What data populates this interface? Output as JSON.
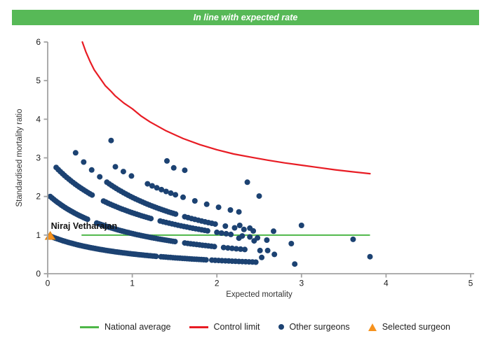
{
  "banner": {
    "text": "In line with expected rate"
  },
  "colors": {
    "banner_bg": "#57b957",
    "banner_text": "#ffffff",
    "national_average": "#4eb748",
    "control_limit": "#e81c24",
    "other_surgeons": "#1c4272",
    "selected_surgeon": "#f6921e",
    "selected_surgeon_border": "#d87f12",
    "axis": "#a2a2a2",
    "tick_text": "#1a1a1a",
    "axis_title_text": "#333333",
    "surgeon_label_text": "#111111"
  },
  "legend": {
    "items": [
      {
        "label": "National average",
        "swatch": "line",
        "color_key": "national_average"
      },
      {
        "label": "Control limit",
        "swatch": "line",
        "color_key": "control_limit"
      },
      {
        "label": "Other surgeons",
        "swatch": "dot",
        "color_key": "other_surgeons"
      },
      {
        "label": "Selected surgeon",
        "swatch": "triangle",
        "color_key": "selected_surgeon"
      }
    ]
  },
  "chart_data": {
    "type": "scatter",
    "title": "In line with expected rate",
    "xlabel": "Expected mortality",
    "ylabel": "Standardised mortality ratio",
    "xlim": [
      0,
      5
    ],
    "ylim": [
      0,
      6
    ],
    "xticks": [
      0,
      1,
      2,
      3,
      4,
      5
    ],
    "yticks": [
      0,
      1,
      2,
      3,
      4,
      5,
      6
    ],
    "grid": false,
    "legend_position": "bottom",
    "national_average": {
      "y": 1.0,
      "x_start": 0.4,
      "x_end": 3.81
    },
    "control_limit": {
      "points": [
        [
          0.41,
          6.0
        ],
        [
          0.45,
          5.75
        ],
        [
          0.5,
          5.5
        ],
        [
          0.55,
          5.28
        ],
        [
          0.6,
          5.12
        ],
        [
          0.68,
          4.87
        ],
        [
          0.75,
          4.72
        ],
        [
          0.8,
          4.6
        ],
        [
          0.9,
          4.42
        ],
        [
          1.0,
          4.27
        ],
        [
          1.1,
          4.09
        ],
        [
          1.21,
          3.93
        ],
        [
          1.4,
          3.7
        ],
        [
          1.6,
          3.5
        ],
        [
          1.8,
          3.34
        ],
        [
          2.0,
          3.21
        ],
        [
          2.2,
          3.1
        ],
        [
          2.42,
          3.01
        ],
        [
          2.6,
          2.94
        ],
        [
          2.8,
          2.87
        ],
        [
          3.0,
          2.81
        ],
        [
          3.2,
          2.75
        ],
        [
          3.4,
          2.69
        ],
        [
          3.6,
          2.64
        ],
        [
          3.81,
          2.59
        ]
      ]
    },
    "selected_surgeon": {
      "label": "Niraj Vetharajan",
      "x": 0.03,
      "y": 0.97
    },
    "other_surgeons": {
      "note": "dense bands follow y = a/(x+b); segments are [x_start, x_end, dot_spacing]",
      "bands": [
        {
          "a": 1.05,
          "b": 1.05,
          "segments": [
            [
              0.05,
              1.28,
              0.022
            ],
            [
              1.34,
              1.88,
              0.028
            ],
            [
              1.94,
              2.45,
              0.04
            ]
          ]
        },
        {
          "a": 2.1,
          "b": 1.02,
          "segments": [
            [
              0.03,
              0.48,
              0.022
            ],
            [
              0.58,
              1.5,
              0.025
            ],
            [
              1.62,
              1.98,
              0.035
            ],
            [
              2.08,
              2.35,
              0.05
            ]
          ]
        },
        {
          "a": 3.33,
          "b": 1.11,
          "segments": [
            [
              0.1,
              0.53,
              0.025
            ],
            [
              0.66,
              1.23,
              0.028
            ],
            [
              1.33,
              1.88,
              0.035
            ],
            [
              2.0,
              2.18,
              0.055
            ],
            [
              2.3,
              2.5,
              0.09
            ]
          ]
        },
        {
          "a": 3.6,
          "b": 0.82,
          "segments": [
            [
              0.33,
              0.62,
              0.095
            ],
            [
              0.7,
              1.52,
              0.028
            ],
            [
              1.62,
              1.98,
              0.04
            ],
            [
              2.1,
              2.45,
              0.11
            ]
          ]
        },
        {
          "a": 5.54,
          "b": 1.2,
          "segments": [
            [
              0.8,
              1.0,
              0.095
            ],
            [
              1.18,
              1.5,
              0.055
            ],
            [
              1.6,
              2.1,
              0.14
            ],
            [
              2.26,
              2.28,
              0.1
            ]
          ]
        }
      ],
      "points": [
        [
          0.75,
          3.45
        ],
        [
          1.41,
          2.92
        ],
        [
          1.49,
          2.74
        ],
        [
          1.62,
          2.68
        ],
        [
          2.36,
          2.37
        ],
        [
          2.5,
          2.01
        ],
        [
          2.27,
          1.25
        ],
        [
          2.39,
          1.18
        ],
        [
          2.67,
          1.1
        ],
        [
          3.0,
          1.25
        ],
        [
          2.26,
          0.92
        ],
        [
          2.44,
          0.85
        ],
        [
          2.59,
          0.87
        ],
        [
          2.88,
          0.78
        ],
        [
          2.51,
          0.6
        ],
        [
          2.6,
          0.6
        ],
        [
          2.68,
          0.5
        ],
        [
          2.53,
          0.42
        ],
        [
          2.92,
          0.25
        ],
        [
          3.61,
          0.89
        ],
        [
          3.81,
          0.44
        ]
      ]
    }
  }
}
